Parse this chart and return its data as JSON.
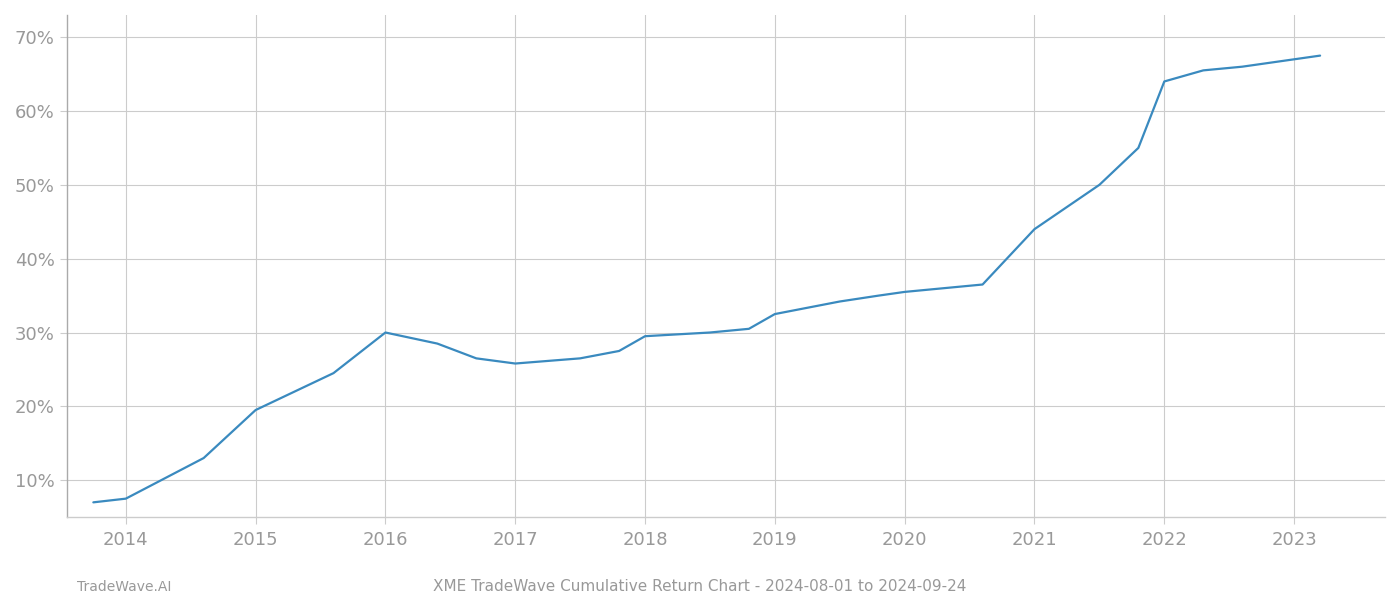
{
  "x_years": [
    2013.75,
    2014.0,
    2014.6,
    2015.0,
    2015.6,
    2016.0,
    2016.4,
    2016.7,
    2017.0,
    2017.5,
    2017.8,
    2018.0,
    2018.5,
    2018.8,
    2019.0,
    2019.5,
    2019.8,
    2020.0,
    2020.3,
    2020.6,
    2021.0,
    2021.5,
    2021.8,
    2022.0,
    2022.3,
    2022.6,
    2023.0,
    2023.2
  ],
  "y_values": [
    7.0,
    7.5,
    13.0,
    19.5,
    24.5,
    30.0,
    28.5,
    26.5,
    25.8,
    26.5,
    27.5,
    29.5,
    30.0,
    30.5,
    32.5,
    34.2,
    35.0,
    35.5,
    36.0,
    36.5,
    44.0,
    50.0,
    55.0,
    64.0,
    65.5,
    66.0,
    67.0,
    67.5
  ],
  "line_color": "#3a8abf",
  "line_width": 1.6,
  "background_color": "#ffffff",
  "grid_color": "#cccccc",
  "title": "XME TradeWave Cumulative Return Chart - 2024-08-01 to 2024-09-24",
  "watermark": "TradeWave.AI",
  "yticks": [
    10,
    20,
    30,
    40,
    50,
    60,
    70
  ],
  "ylim": [
    5,
    73
  ],
  "xlim": [
    2013.55,
    2023.7
  ],
  "xticks": [
    2014,
    2015,
    2016,
    2017,
    2018,
    2019,
    2020,
    2021,
    2022,
    2023
  ],
  "tick_label_color": "#999999",
  "spine_color": "#cccccc",
  "left_spine_color": "#aaaaaa",
  "title_fontsize": 11,
  "watermark_fontsize": 10,
  "axis_label_fontsize": 13
}
